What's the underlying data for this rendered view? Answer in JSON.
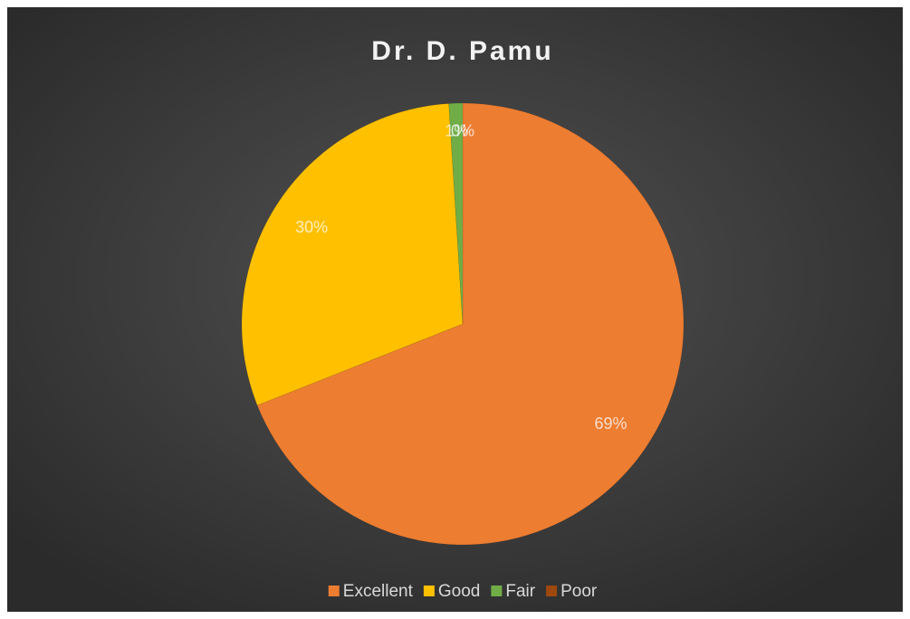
{
  "chart_data": {
    "type": "pie",
    "title": "Dr. D. Pamu",
    "categories": [
      "Excellent",
      "Good",
      "Fair",
      "Poor"
    ],
    "values": [
      69,
      30,
      1,
      0
    ],
    "value_labels": [
      "69%",
      "30%",
      "1%",
      "0%"
    ],
    "colors": [
      "#ED7D31",
      "#FFC000",
      "#70AD47",
      "#9E480E"
    ],
    "legend": "bottom"
  }
}
